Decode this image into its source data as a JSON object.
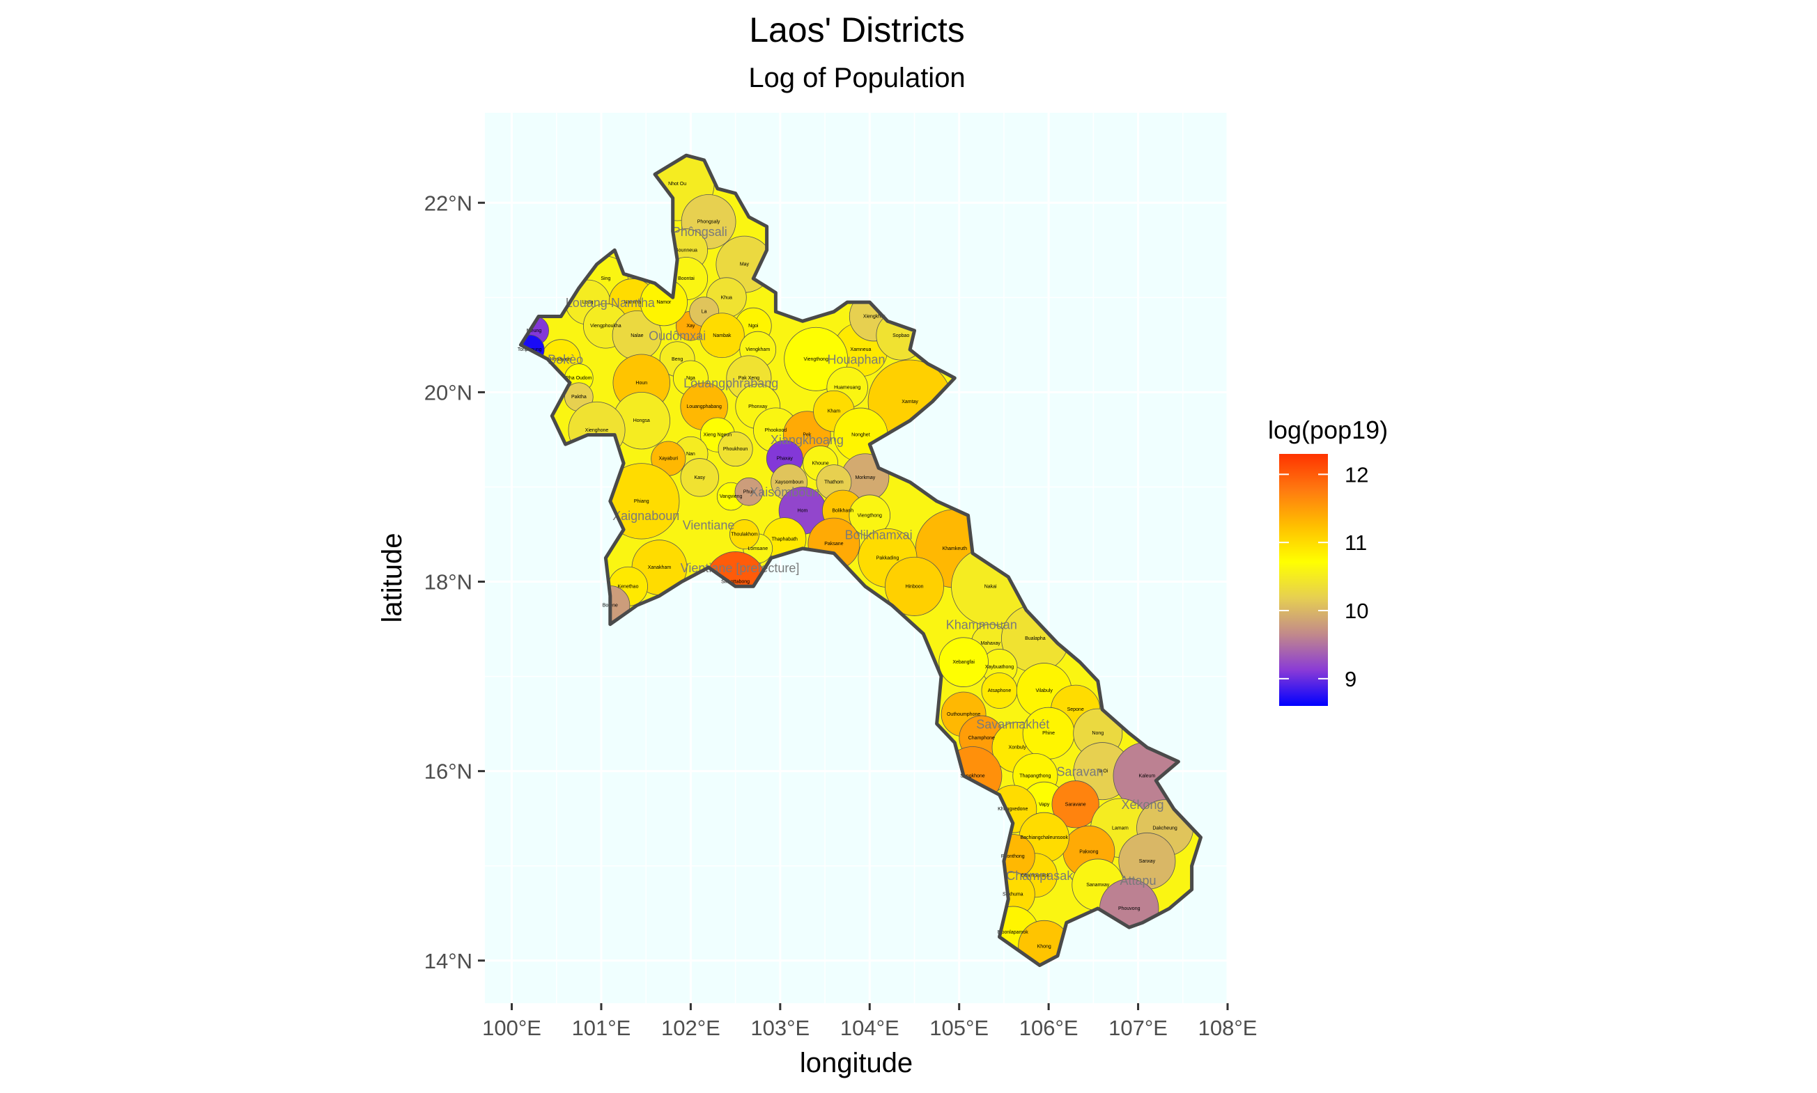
{
  "title": "Laos' Districts",
  "subtitle": "Log of Population",
  "axes": {
    "x": {
      "label": "longitude",
      "range": [
        99.7,
        108.0
      ],
      "ticks": [
        {
          "value": 100,
          "label": "100°E"
        },
        {
          "value": 101,
          "label": "101°E"
        },
        {
          "value": 102,
          "label": "102°E"
        },
        {
          "value": 103,
          "label": "103°E"
        },
        {
          "value": 104,
          "label": "104°E"
        },
        {
          "value": 105,
          "label": "105°E"
        },
        {
          "value": 106,
          "label": "106°E"
        },
        {
          "value": 107,
          "label": "107°E"
        },
        {
          "value": 108,
          "label": "108°E"
        }
      ]
    },
    "y": {
      "label": "latitude",
      "range": [
        13.55,
        22.95
      ],
      "ticks": [
        {
          "value": 14,
          "label": "14°N"
        },
        {
          "value": 16,
          "label": "16°N"
        },
        {
          "value": 18,
          "label": "18°N"
        },
        {
          "value": 20,
          "label": "20°N"
        },
        {
          "value": 22,
          "label": "22°N"
        }
      ]
    }
  },
  "legend": {
    "title": "log(pop19)",
    "range": [
      8.6,
      12.3
    ],
    "ticks": [
      {
        "value": 9,
        "label": "9"
      },
      {
        "value": 10,
        "label": "10"
      },
      {
        "value": 11,
        "label": "11"
      },
      {
        "value": 12,
        "label": "12"
      }
    ],
    "colors": [
      "#0000ff",
      "#8a3bd6",
      "#c28a8a",
      "#e6cf52",
      "#ffff00",
      "#ffbf00",
      "#ff7a10",
      "#ff3300"
    ]
  },
  "colors": {
    "panel_bg": "#f0ffff",
    "grid": "#ffffff",
    "border": "#4a4a4a",
    "tick": "#333333"
  },
  "map": {
    "provinces": [
      {
        "name": "Phôngsali",
        "lon": 102.1,
        "lat": 21.65
      },
      {
        "name": "Louang Namtha",
        "lon": 101.1,
        "lat": 20.9
      },
      {
        "name": "Oudômxai",
        "lon": 101.85,
        "lat": 20.55
      },
      {
        "name": "Bokèo",
        "lon": 100.6,
        "lat": 20.3
      },
      {
        "name": "Louangphrabang",
        "lon": 102.45,
        "lat": 20.05
      },
      {
        "name": "Houaphan",
        "lon": 103.85,
        "lat": 20.3
      },
      {
        "name": "Xiangkhoang",
        "lon": 103.3,
        "lat": 19.45
      },
      {
        "name": "Xaignabouri",
        "lon": 101.5,
        "lat": 18.65
      },
      {
        "name": "Vientiane",
        "lon": 102.2,
        "lat": 18.55
      },
      {
        "name": "Xaisômboun",
        "lon": 103.05,
        "lat": 18.9
      },
      {
        "name": "Bolikhamxai",
        "lon": 104.1,
        "lat": 18.45
      },
      {
        "name": "Vientiane [prefecture]",
        "lon": 102.55,
        "lat": 18.1
      },
      {
        "name": "Khammouan",
        "lon": 105.25,
        "lat": 17.5
      },
      {
        "name": "Savannakhét",
        "lon": 105.6,
        "lat": 16.45
      },
      {
        "name": "Saravan",
        "lon": 106.35,
        "lat": 15.95
      },
      {
        "name": "Xékong",
        "lon": 107.05,
        "lat": 15.6
      },
      {
        "name": "Champasak",
        "lon": 105.9,
        "lat": 14.85
      },
      {
        "name": "Attapu",
        "lon": 107.0,
        "lat": 14.8
      }
    ],
    "districts": [
      {
        "name": "Nhot Ou",
        "lon": 101.85,
        "lat": 22.2,
        "value": 10.5
      },
      {
        "name": "Phongsaly",
        "lon": 102.2,
        "lat": 21.8,
        "value": 10.2
      },
      {
        "name": "Bounneua",
        "lon": 101.95,
        "lat": 21.5,
        "value": 10.4
      },
      {
        "name": "May",
        "lon": 102.6,
        "lat": 21.35,
        "value": 10.3
      },
      {
        "name": "Boontai",
        "lon": 101.95,
        "lat": 21.2,
        "value": 10.6
      },
      {
        "name": "Khua",
        "lon": 102.4,
        "lat": 21.0,
        "value": 10.4
      },
      {
        "name": "Sing",
        "lon": 101.05,
        "lat": 21.2,
        "value": 10.6
      },
      {
        "name": "Long",
        "lon": 100.85,
        "lat": 20.95,
        "value": 10.5
      },
      {
        "name": "Namtha",
        "lon": 101.35,
        "lat": 20.95,
        "value": 11.0
      },
      {
        "name": "Viengphoukha",
        "lon": 101.05,
        "lat": 20.7,
        "value": 10.5
      },
      {
        "name": "Nalae",
        "lon": 101.4,
        "lat": 20.6,
        "value": 10.3
      },
      {
        "name": "Xay",
        "lon": 102.0,
        "lat": 20.7,
        "value": 11.4
      },
      {
        "name": "La",
        "lon": 102.15,
        "lat": 20.85,
        "value": 10.1
      },
      {
        "name": "Namor",
        "lon": 101.7,
        "lat": 20.95,
        "value": 10.8
      },
      {
        "name": "Beng",
        "lon": 101.85,
        "lat": 20.35,
        "value": 10.5
      },
      {
        "name": "Nga",
        "lon": 102.0,
        "lat": 20.15,
        "value": 10.6
      },
      {
        "name": "Houn",
        "lon": 101.45,
        "lat": 20.1,
        "value": 11.2
      },
      {
        "name": "Meung",
        "lon": 100.25,
        "lat": 20.65,
        "value": 9.1
      },
      {
        "name": "Houayxay",
        "lon": 100.55,
        "lat": 20.35,
        "value": 10.9
      },
      {
        "name": "Pha Oudom",
        "lon": 100.75,
        "lat": 20.15,
        "value": 10.7
      },
      {
        "name": "Paktha",
        "lon": 100.75,
        "lat": 19.95,
        "value": 10.2
      },
      {
        "name": "Tonpheung",
        "lon": 100.2,
        "lat": 20.45,
        "value": 8.7
      },
      {
        "name": "Hongsa",
        "lon": 101.45,
        "lat": 19.7,
        "value": 10.5
      },
      {
        "name": "Xienghone",
        "lon": 100.95,
        "lat": 19.6,
        "value": 10.4
      },
      {
        "name": "Ngoi",
        "lon": 102.7,
        "lat": 20.7,
        "value": 10.8
      },
      {
        "name": "Nambak",
        "lon": 102.35,
        "lat": 20.6,
        "value": 11.0
      },
      {
        "name": "Viengkham",
        "lon": 102.75,
        "lat": 20.45,
        "value": 10.6
      },
      {
        "name": "Pak Xeng",
        "lon": 102.65,
        "lat": 20.15,
        "value": 10.4
      },
      {
        "name": "Phonxay",
        "lon": 102.75,
        "lat": 19.85,
        "value": 10.6
      },
      {
        "name": "Louangphabang",
        "lon": 102.15,
        "lat": 19.85,
        "value": 11.3
      },
      {
        "name": "Xieng Ngeun",
        "lon": 102.3,
        "lat": 19.55,
        "value": 10.7
      },
      {
        "name": "Phoukhoun",
        "lon": 102.5,
        "lat": 19.4,
        "value": 10.4
      },
      {
        "name": "Nan",
        "lon": 102.0,
        "lat": 19.35,
        "value": 10.5
      },
      {
        "name": "Xamneua",
        "lon": 103.9,
        "lat": 20.45,
        "value": 10.9
      },
      {
        "name": "Xiengkhor",
        "lon": 104.05,
        "lat": 20.8,
        "value": 10.2
      },
      {
        "name": "Sopbao",
        "lon": 104.35,
        "lat": 20.6,
        "value": 10.4
      },
      {
        "name": "Viengthong",
        "lon": 103.4,
        "lat": 20.35,
        "value": 10.7
      },
      {
        "name": "Huameuang",
        "lon": 103.75,
        "lat": 20.05,
        "value": 10.6
      },
      {
        "name": "Xamtay",
        "lon": 104.45,
        "lat": 19.9,
        "value": 11.1
      },
      {
        "name": "Phookood",
        "lon": 102.95,
        "lat": 19.6,
        "value": 10.6
      },
      {
        "name": "Pek",
        "lon": 103.3,
        "lat": 19.55,
        "value": 11.4
      },
      {
        "name": "Kham",
        "lon": 103.6,
        "lat": 19.8,
        "value": 11.0
      },
      {
        "name": "Nonghet",
        "lon": 103.9,
        "lat": 19.55,
        "value": 10.8
      },
      {
        "name": "Phaxay",
        "lon": 103.05,
        "lat": 19.3,
        "value": 9.1
      },
      {
        "name": "Khoune",
        "lon": 103.45,
        "lat": 19.25,
        "value": 10.6
      },
      {
        "name": "Morkmay",
        "lon": 103.95,
        "lat": 19.1,
        "value": 9.9
      },
      {
        "name": "Xayaburi",
        "lon": 101.75,
        "lat": 19.3,
        "value": 11.3
      },
      {
        "name": "Kasy",
        "lon": 102.1,
        "lat": 19.1,
        "value": 10.4
      },
      {
        "name": "Phiang",
        "lon": 101.45,
        "lat": 18.85,
        "value": 11.0
      },
      {
        "name": "Vangvieng",
        "lon": 102.45,
        "lat": 18.9,
        "value": 10.7
      },
      {
        "name": "Xaysomboun",
        "lon": 103.1,
        "lat": 19.05,
        "value": 10.1
      },
      {
        "name": "Hom",
        "lon": 103.25,
        "lat": 18.75,
        "value": 9.2
      },
      {
        "name": "Phun",
        "lon": 102.65,
        "lat": 18.95,
        "value": 9.8
      },
      {
        "name": "Thathom",
        "lon": 103.6,
        "lat": 19.05,
        "value": 10.2
      },
      {
        "name": "Bolikhanh",
        "lon": 103.7,
        "lat": 18.75,
        "value": 11.2
      },
      {
        "name": "Viengthong",
        "lon": 104.0,
        "lat": 18.7,
        "value": 10.6
      },
      {
        "name": "Paksane",
        "lon": 103.6,
        "lat": 18.4,
        "value": 11.4
      },
      {
        "name": "Thaphabath",
        "lon": 103.05,
        "lat": 18.45,
        "value": 10.9
      },
      {
        "name": "Lomsane",
        "lon": 102.75,
        "lat": 18.35,
        "value": 10.6
      },
      {
        "name": "Khamkeuth",
        "lon": 104.95,
        "lat": 18.35,
        "value": 11.3
      },
      {
        "name": "Pakkading",
        "lon": 104.2,
        "lat": 18.25,
        "value": 11.0
      },
      {
        "name": "Xanakham",
        "lon": 101.65,
        "lat": 18.15,
        "value": 11.0
      },
      {
        "name": "Kenethao",
        "lon": 101.3,
        "lat": 17.95,
        "value": 10.9
      },
      {
        "name": "Botene",
        "lon": 101.1,
        "lat": 17.75,
        "value": 9.8
      },
      {
        "name": "Thoulakhom",
        "lon": 102.6,
        "lat": 18.5,
        "value": 11.0
      },
      {
        "name": "Sikhottabong",
        "lon": 102.5,
        "lat": 18.0,
        "value": 12.0
      },
      {
        "name": "Hinboon",
        "lon": 104.5,
        "lat": 17.95,
        "value": 11.1
      },
      {
        "name": "Nakai",
        "lon": 105.35,
        "lat": 17.95,
        "value": 10.5
      },
      {
        "name": "Mahaxay",
        "lon": 105.35,
        "lat": 17.35,
        "value": 10.5
      },
      {
        "name": "Bualapha",
        "lon": 105.85,
        "lat": 17.4,
        "value": 10.4
      },
      {
        "name": "Xaybuathong",
        "lon": 105.45,
        "lat": 17.1,
        "value": 10.6
      },
      {
        "name": "Xebangfai",
        "lon": 105.05,
        "lat": 17.15,
        "value": 10.7
      },
      {
        "name": "Atsaphone",
        "lon": 105.45,
        "lat": 16.85,
        "value": 10.9
      },
      {
        "name": "Vilabuly",
        "lon": 105.95,
        "lat": 16.85,
        "value": 10.8
      },
      {
        "name": "Sepone",
        "lon": 106.3,
        "lat": 16.65,
        "value": 11.0
      },
      {
        "name": "Outhoumphone",
        "lon": 105.05,
        "lat": 16.6,
        "value": 11.3
      },
      {
        "name": "Champhone",
        "lon": 105.25,
        "lat": 16.35,
        "value": 11.5
      },
      {
        "name": "Xonbuly",
        "lon": 105.65,
        "lat": 16.25,
        "value": 10.9
      },
      {
        "name": "Phine",
        "lon": 106.0,
        "lat": 16.4,
        "value": 10.8
      },
      {
        "name": "Nong",
        "lon": 106.55,
        "lat": 16.4,
        "value": 10.3
      },
      {
        "name": "Songkhone",
        "lon": 105.15,
        "lat": 15.95,
        "value": 11.6
      },
      {
        "name": "Thapangthong",
        "lon": 105.85,
        "lat": 15.95,
        "value": 10.8
      },
      {
        "name": "Ta Oi",
        "lon": 106.6,
        "lat": 16.0,
        "value": 10.2
      },
      {
        "name": "Kaleum",
        "lon": 107.1,
        "lat": 15.95,
        "value": 9.6
      },
      {
        "name": "Vapy",
        "lon": 105.95,
        "lat": 15.65,
        "value": 10.7
      },
      {
        "name": "Khongxedone",
        "lon": 105.6,
        "lat": 15.6,
        "value": 11.0
      },
      {
        "name": "Saravane",
        "lon": 106.3,
        "lat": 15.65,
        "value": 11.7
      },
      {
        "name": "Lamarn",
        "lon": 106.8,
        "lat": 15.4,
        "value": 10.5
      },
      {
        "name": "Dakcheung",
        "lon": 107.3,
        "lat": 15.4,
        "value": 10.1
      },
      {
        "name": "Pakxong",
        "lon": 106.45,
        "lat": 15.15,
        "value": 11.4
      },
      {
        "name": "Sanxay",
        "lon": 107.1,
        "lat": 15.05,
        "value": 10.0
      },
      {
        "name": "Bachiangchaleunsook",
        "lon": 105.95,
        "lat": 15.3,
        "value": 11.0
      },
      {
        "name": "Champasack",
        "lon": 105.85,
        "lat": 14.9,
        "value": 11.0
      },
      {
        "name": "Phonthong",
        "lon": 105.6,
        "lat": 15.1,
        "value": 11.3
      },
      {
        "name": "Sanamxay",
        "lon": 106.55,
        "lat": 14.8,
        "value": 10.6
      },
      {
        "name": "Phouvong",
        "lon": 106.9,
        "lat": 14.55,
        "value": 9.6
      },
      {
        "name": "Sukhuma",
        "lon": 105.6,
        "lat": 14.7,
        "value": 11.0
      },
      {
        "name": "Moonlapamok",
        "lon": 105.6,
        "lat": 14.3,
        "value": 10.8
      },
      {
        "name": "Khong",
        "lon": 105.95,
        "lat": 14.15,
        "value": 11.2
      }
    ]
  }
}
